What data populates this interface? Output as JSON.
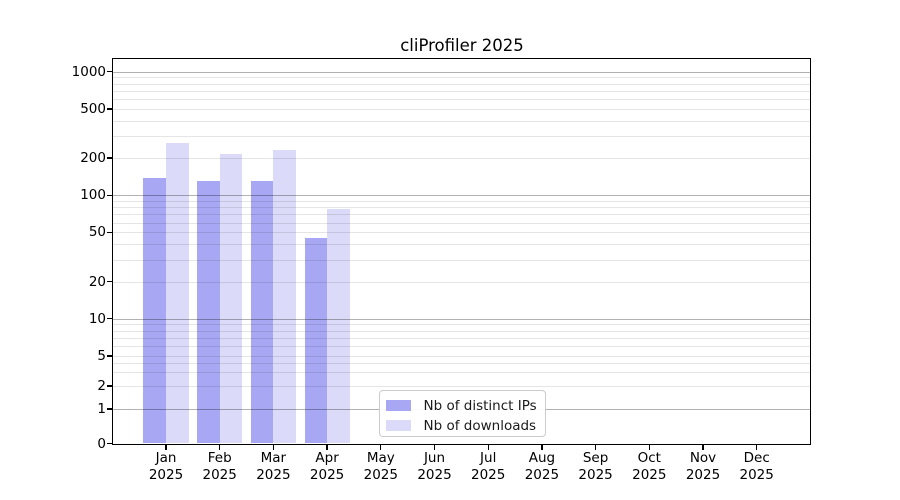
{
  "chart_data": {
    "type": "bar",
    "title": "cliProfiler 2025",
    "categories": [
      "Jan 2025",
      "Feb 2025",
      "Mar 2025",
      "Apr 2025",
      "May 2025",
      "Jun 2025",
      "Jul 2025",
      "Aug 2025",
      "Sep 2025",
      "Oct 2025",
      "Nov 2025",
      "Dec 2025"
    ],
    "series": [
      {
        "name": "Nb of distinct IPs",
        "color": "#a7a7f3",
        "values": [
          139,
          131,
          131,
          45,
          0,
          0,
          0,
          0,
          0,
          0,
          0,
          0
        ]
      },
      {
        "name": "Nb of downloads",
        "color": "#dbdbf9",
        "values": [
          265,
          217,
          231,
          77,
          0,
          0,
          0,
          0,
          0,
          0,
          0,
          0
        ]
      }
    ],
    "yscale": "symlog",
    "ylim": [
      0,
      1260
    ],
    "yticks": [
      {
        "value": 1000,
        "label": "1000"
      },
      {
        "value": 500,
        "label": "500"
      },
      {
        "value": 200,
        "label": "200"
      },
      {
        "value": 100,
        "label": "100"
      },
      {
        "value": 50,
        "label": "50"
      },
      {
        "value": 20,
        "label": "20"
      },
      {
        "value": 10,
        "label": "10"
      },
      {
        "value": 5,
        "label": "5"
      },
      {
        "value": 2,
        "label": "2"
      },
      {
        "value": 1,
        "label": "1"
      },
      {
        "value": 0,
        "label": "0"
      }
    ],
    "minor_grid_values": [
      900,
      800,
      700,
      600,
      500,
      400,
      300,
      200,
      90,
      80,
      70,
      60,
      50,
      40,
      30,
      20,
      9,
      8,
      7,
      6,
      5,
      4,
      3,
      2
    ],
    "major_grid_values": [
      1000,
      100,
      10,
      1
    ],
    "grid": "on",
    "legend_position": "lower-center"
  },
  "colors": {
    "major_grid": "#b3b3b3",
    "minor_grid": "#e6e6e6",
    "spine": "#000000",
    "background": "#ffffff"
  }
}
